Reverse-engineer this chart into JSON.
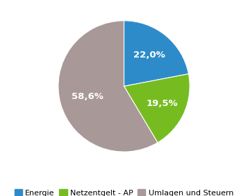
{
  "labels": [
    "Energie",
    "Netzentgelt - AP",
    "Umlagen und Steuern"
  ],
  "values": [
    22.0,
    19.5,
    58.6
  ],
  "colors": [
    "#2e8bc9",
    "#76bc21",
    "#a89898"
  ],
  "autopct_labels": [
    "22,0%",
    "19,5%",
    "58,6%"
  ],
  "legend_labels": [
    "Energie",
    "Netzentgelt - AP",
    "Umlagen und Steuern"
  ],
  "startangle": 90,
  "background_color": "#ffffff",
  "label_fontsize": 9.5,
  "legend_fontsize": 8.0,
  "label_radii": [
    0.58,
    0.6,
    0.55
  ]
}
